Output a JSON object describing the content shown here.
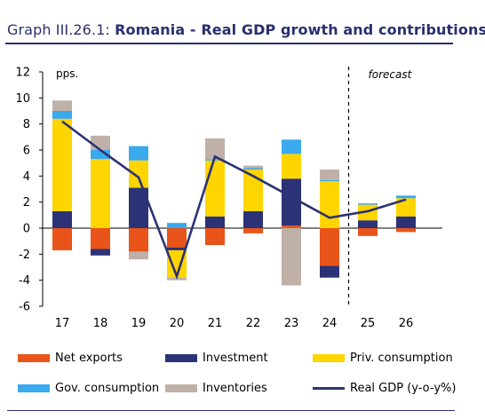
{
  "title": {
    "prefix": "Graph III.26.1:",
    "main": "Romania - Real GDP growth and contributions"
  },
  "colors": {
    "net_exports": "#e8541a",
    "investment": "#2b3275",
    "priv_consumption": "#ffd500",
    "gov_consumption": "#3aa9ee",
    "inventories": "#bfb1a8",
    "real_gdp": "#2b3275"
  },
  "chart_data": {
    "type": "bar",
    "stacked": true,
    "categories": [
      "17",
      "18",
      "19",
      "20",
      "21",
      "22",
      "23",
      "24",
      "25",
      "26"
    ],
    "ylabel": "pps.",
    "ylim": [
      -6,
      12
    ],
    "yticks": [
      "-6",
      "-4",
      "-2",
      "0",
      "2",
      "4",
      "6",
      "8",
      "10",
      "12"
    ],
    "annotation": "forecast",
    "forecast_from": "25",
    "legend_position": "bottom",
    "series": [
      {
        "name": "Net exports",
        "key": "net_exports",
        "values": [
          -1.7,
          -1.6,
          -1.8,
          -1.5,
          -1.3,
          -0.4,
          0.2,
          -2.9,
          -0.6,
          -0.3
        ]
      },
      {
        "name": "Investment",
        "key": "investment",
        "values": [
          1.3,
          -0.5,
          3.1,
          -0.2,
          0.9,
          1.3,
          3.6,
          -0.9,
          0.6,
          0.9
        ]
      },
      {
        "name": "Priv. consumption",
        "key": "priv_consumption",
        "values": [
          7.1,
          5.3,
          2.1,
          -2.1,
          4.3,
          3.2,
          1.9,
          3.6,
          1.2,
          1.4
        ]
      },
      {
        "name": "Gov. consumption",
        "key": "gov_consumption",
        "values": [
          0.6,
          0.7,
          1.1,
          0.4,
          0.1,
          0.1,
          1.1,
          0.1,
          0.1,
          0.2
        ]
      },
      {
        "name": "Inventories",
        "key": "inventories",
        "values": [
          0.8,
          1.1,
          -0.6,
          -0.2,
          1.6,
          0.2,
          -4.4,
          0.8,
          0.0,
          0.0
        ]
      }
    ],
    "line": {
      "name": "Real GDP (y-o-y%)",
      "key": "real_gdp",
      "values": [
        8.2,
        6.0,
        3.9,
        -3.7,
        5.5,
        4.0,
        2.4,
        0.8,
        1.3,
        2.2
      ]
    }
  },
  "legend": [
    {
      "label": "Net exports",
      "key": "net_exports",
      "kind": "box"
    },
    {
      "label": "Investment",
      "key": "investment",
      "kind": "box"
    },
    {
      "label": "Priv. consumption",
      "key": "priv_consumption",
      "kind": "box"
    },
    {
      "label": "Gov. consumption",
      "key": "gov_consumption",
      "kind": "box"
    },
    {
      "label": "Inventories",
      "key": "inventories",
      "kind": "box"
    },
    {
      "label": "Real GDP (y-o-y%)",
      "key": "real_gdp",
      "kind": "line"
    }
  ]
}
